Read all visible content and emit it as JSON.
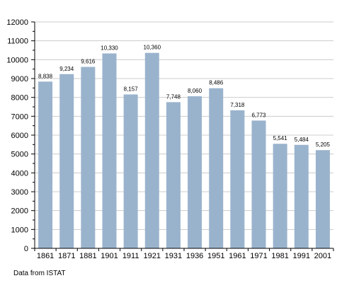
{
  "chart_data": {
    "type": "bar",
    "categories": [
      "1861",
      "1871",
      "1881",
      "1901",
      "1911",
      "1921",
      "1931",
      "1936",
      "1951",
      "1961",
      "1971",
      "1981",
      "1991",
      "2001"
    ],
    "values": [
      8838,
      9234,
      9616,
      10330,
      8157,
      10360,
      7748,
      8060,
      8486,
      7318,
      6773,
      5541,
      5484,
      5205
    ],
    "value_labels": [
      "8,838",
      "9,234",
      "9,616",
      "10,330",
      "8,157",
      "10,360",
      "7,748",
      "8,060",
      "8,486",
      "7,318",
      "6,773",
      "5,541",
      "5,484",
      "5,205"
    ],
    "ylim": [
      0,
      12000
    ],
    "yticks": [
      0,
      1000,
      2000,
      3000,
      4000,
      5000,
      6000,
      7000,
      8000,
      9000,
      10000,
      11000,
      12000
    ],
    "grid": true,
    "bar_color": "#9ab3cd",
    "grid_color": "#cccccc",
    "title": "",
    "xlabel": "",
    "ylabel": ""
  },
  "source_note": "Data from ISTAT"
}
